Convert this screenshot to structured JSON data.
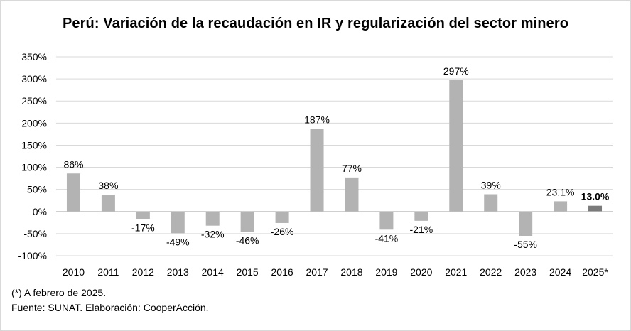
{
  "chart_data": {
    "type": "bar",
    "title": "Perú: Variación de la recaudación  en IR y regularización  del sector minero",
    "categories": [
      "2010",
      "2011",
      "2012",
      "2013",
      "2014",
      "2015",
      "2016",
      "2017",
      "2018",
      "2019",
      "2020",
      "2021",
      "2022",
      "2023",
      "2024",
      "2025*"
    ],
    "values": [
      86,
      38,
      -17,
      -49,
      -32,
      -46,
      -26,
      187,
      77,
      -41,
      -21,
      297,
      39,
      -55,
      23.1,
      13.0
    ],
    "data_labels": [
      "86%",
      "38%",
      "-17%",
      "-49%",
      "-32%",
      "-46%",
      "-26%",
      "187%",
      "77%",
      "-41%",
      "-21%",
      "297%",
      "39%",
      "-55%",
      "23.1%",
      "13.0%"
    ],
    "y_ticks": [
      -100,
      -50,
      0,
      50,
      100,
      150,
      200,
      250,
      300,
      350
    ],
    "y_tick_labels": [
      "-100%",
      "-50%",
      "0%",
      "50%",
      "100%",
      "150%",
      "200%",
      "250%",
      "300%",
      "350%"
    ],
    "ylim": [
      -100,
      350
    ],
    "xlabel": "",
    "ylabel": "",
    "grid": true,
    "legend": "none",
    "highlight_index": 15,
    "colors": {
      "bar": "#b3b3b3",
      "highlight_bar": "#7a7a7a",
      "grid": "#d9d9d9",
      "axis": "#bfbfbf"
    }
  },
  "footnotes": {
    "note": "(*) A febrero de 2025.",
    "source": "Fuente: SUNAT. Elaboración: CooperAcción."
  }
}
